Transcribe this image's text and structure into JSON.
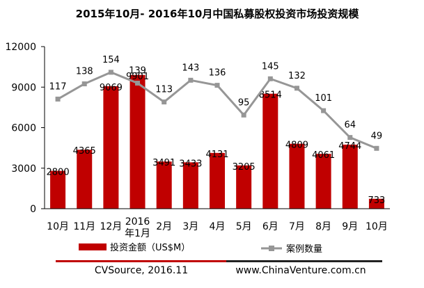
{
  "chart_data": {
    "type": "bar+line",
    "title": "2015年10月- 2016年10月中国私募股权投资市场投资规模",
    "categories": [
      "10月",
      "11月",
      "12月",
      "2016\n年1月",
      "2月",
      "3月",
      "4月",
      "5月",
      "6月",
      "7月",
      "8月",
      "9月",
      "10月"
    ],
    "y_ticks": [
      "0",
      "3000",
      "6000",
      "9000",
      "12000"
    ],
    "ylim": [
      0,
      12000
    ],
    "series": [
      {
        "name": "投资金额（US$M）",
        "type": "bar",
        "color": "#c00000",
        "values": [
          2800,
          4365,
          9069,
          9901,
          3491,
          3433,
          4131,
          3205,
          8514,
          4809,
          4061,
          4744,
          733
        ]
      },
      {
        "name": "案例数量",
        "type": "line",
        "color": "#969696",
        "values": [
          117,
          138,
          154,
          139,
          113,
          143,
          136,
          95,
          145,
          132,
          101,
          64,
          49
        ]
      }
    ],
    "grid": false,
    "legend_position": "bottom"
  },
  "footer": {
    "source": "CVSource, 2016.11",
    "website": "www.ChinaVenture.com.cn"
  },
  "colors": {
    "bar": "#c00000",
    "line": "#969696",
    "footer_red": "#c00000",
    "footer_dark": "#222222"
  }
}
